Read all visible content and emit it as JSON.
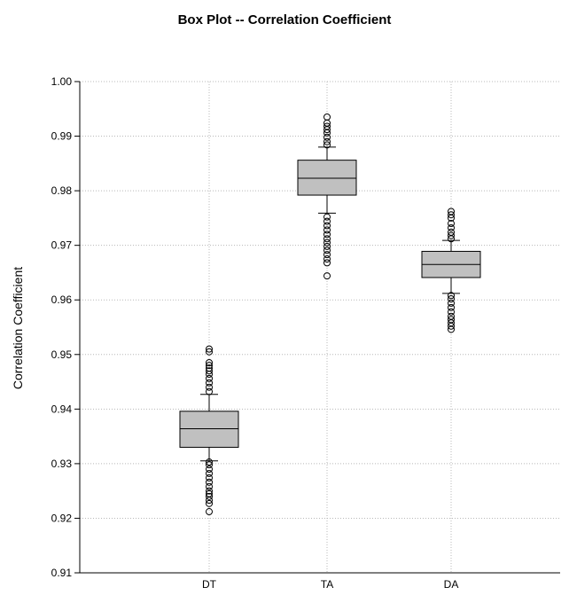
{
  "chart_data": {
    "type": "boxplot",
    "title": "Box Plot -- Correlation Coefficient",
    "xlabel": "",
    "ylabel": "Correlation Coefficient",
    "ylim": [
      0.91,
      1.0
    ],
    "yticks": [
      "0.91",
      "0.92",
      "0.93",
      "0.94",
      "0.95",
      "0.96",
      "0.97",
      "0.98",
      "0.99",
      "1.00"
    ],
    "grid": true,
    "categories": [
      "DT",
      "TA",
      "DA"
    ],
    "boxes": [
      {
        "category": "DT",
        "whisker_low": 0.9305,
        "q1": 0.933,
        "median": 0.9364,
        "q3": 0.9396,
        "whisker_high": 0.9427,
        "outliers": [
          0.9212,
          0.9227,
          0.9233,
          0.924,
          0.9245,
          0.925,
          0.9258,
          0.9266,
          0.9274,
          0.9282,
          0.929,
          0.9298,
          0.9303,
          0.9432,
          0.944,
          0.9448,
          0.9456,
          0.9464,
          0.947,
          0.9475,
          0.948,
          0.9485,
          0.9505,
          0.951
        ]
      },
      {
        "category": "TA",
        "whisker_low": 0.9759,
        "q1": 0.9792,
        "median": 0.9823,
        "q3": 0.9856,
        "whisker_high": 0.988,
        "outliers": [
          0.9644,
          0.9668,
          0.9675,
          0.9683,
          0.9691,
          0.9698,
          0.9705,
          0.9712,
          0.972,
          0.9728,
          0.9736,
          0.9744,
          0.9752,
          0.9884,
          0.989,
          0.9898,
          0.9906,
          0.9912,
          0.9918,
          0.9924,
          0.9935
        ]
      },
      {
        "category": "DA",
        "whisker_low": 0.9612,
        "q1": 0.9641,
        "median": 0.9665,
        "q3": 0.9689,
        "whisker_high": 0.9709,
        "outliers": [
          0.9546,
          0.9552,
          0.9558,
          0.9564,
          0.957,
          0.9578,
          0.9586,
          0.9594,
          0.9602,
          0.9608,
          0.9712,
          0.9718,
          0.9724,
          0.9732,
          0.974,
          0.975,
          0.9756,
          0.9762
        ]
      }
    ],
    "colors": {
      "box_fill": "#c0c0c0",
      "box_stroke": "#000000",
      "grid": "#b8b8b8",
      "axis": "#000000"
    }
  }
}
